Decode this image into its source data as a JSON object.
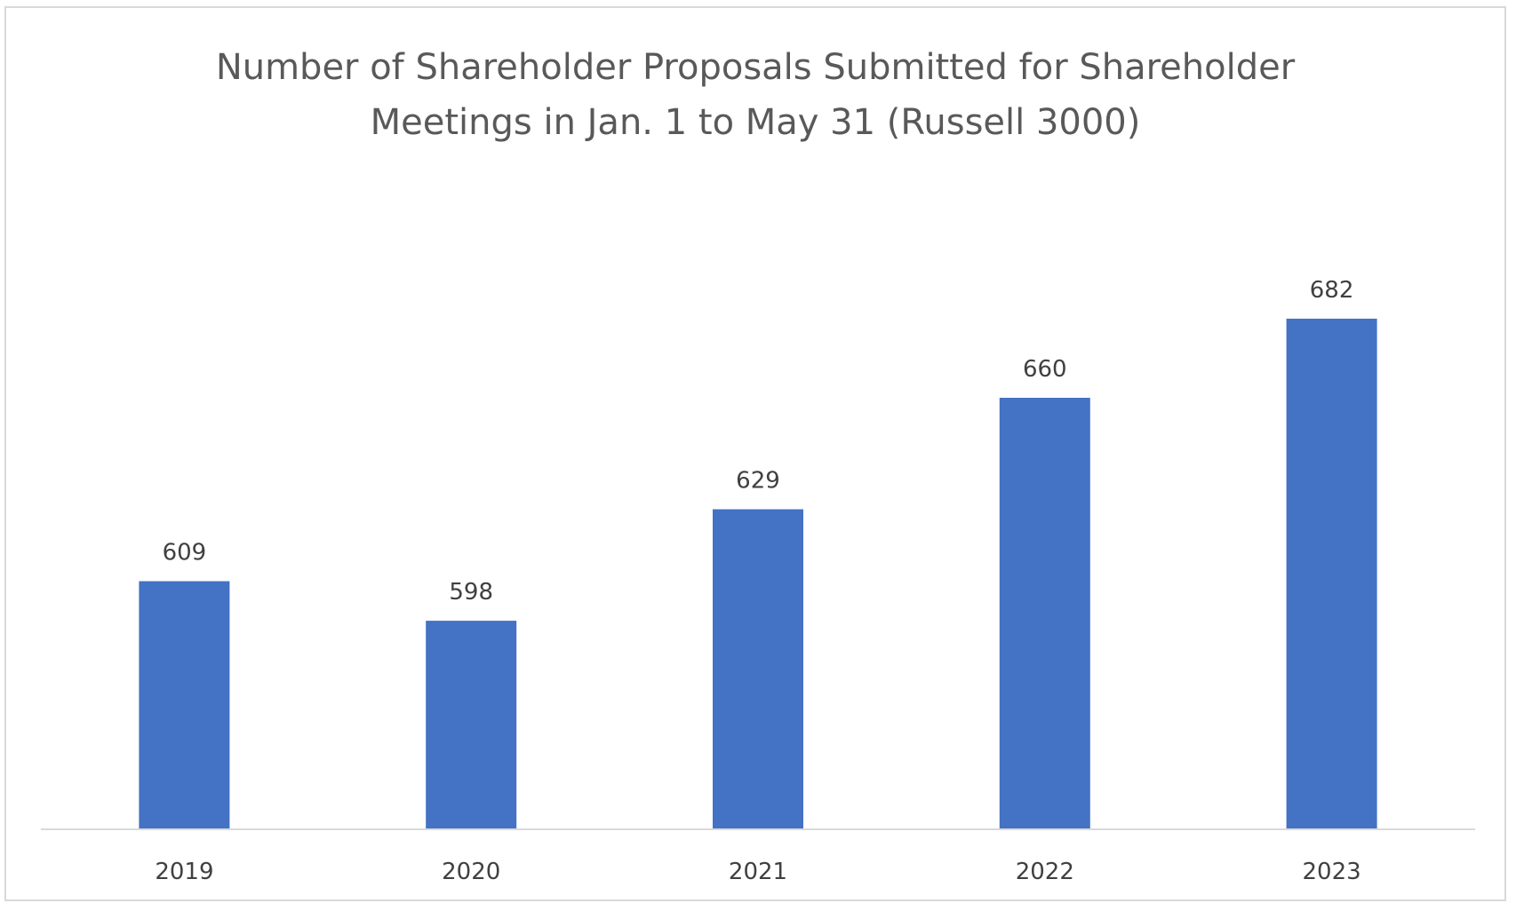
{
  "chart_data": {
    "type": "bar",
    "title": "Number of Shareholder Proposals Submitted for Shareholder Meetings in Jan. 1 to May 31 (Russell 3000)",
    "title_lines": [
      "Number of Shareholder Proposals Submitted for Shareholder",
      "Meetings in Jan. 1 to May 31 (Russell 3000)"
    ],
    "categories": [
      "2019",
      "2020",
      "2021",
      "2022",
      "2023"
    ],
    "values": [
      609,
      598,
      629,
      660,
      682
    ],
    "data_labels": [
      "609",
      "598",
      "629",
      "660",
      "682"
    ],
    "xlabel": "",
    "ylabel": "",
    "ylim": [
      540,
      700
    ],
    "grid": false,
    "legend": "none",
    "bar_color": "#4472c4",
    "axis_color": "#d9d9d9"
  }
}
